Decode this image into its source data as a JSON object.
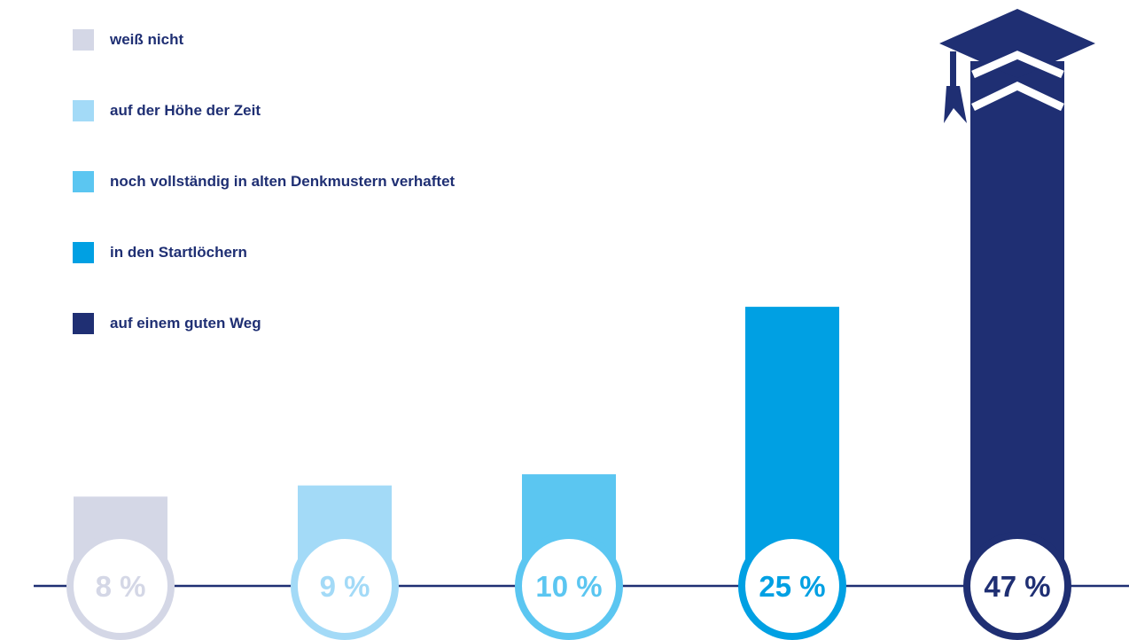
{
  "chart_data": {
    "type": "bar",
    "categories": [
      "weiß nicht",
      "auf der Höhe der Zeit",
      "noch vollständig in alten Denkmustern verhaftet",
      "in den Startlöchern",
      "auf einem guten Weg"
    ],
    "values": [
      8,
      9,
      10,
      25,
      47
    ],
    "value_labels": [
      "8 %",
      "9 %",
      "10 %",
      "25 %",
      "47 %"
    ],
    "colors": [
      "#d4d7e6",
      "#a3daf7",
      "#5bc6f1",
      "#00a0e3",
      "#1f2f73"
    ],
    "ylim": [
      0,
      47
    ],
    "legend_position": "top-left",
    "grid": false,
    "decoration": "graduation-cap-icon"
  }
}
